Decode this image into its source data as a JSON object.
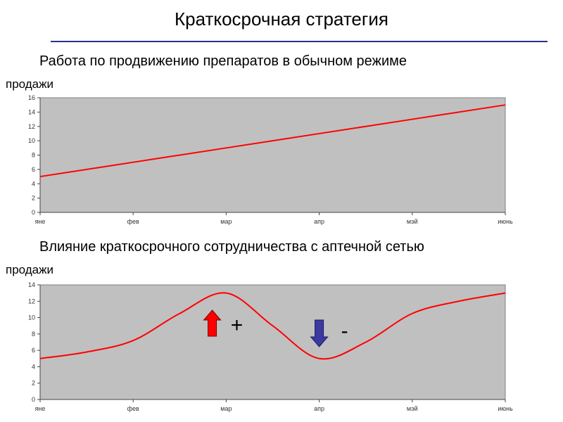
{
  "slide": {
    "title": "Краткосрочная стратегия",
    "subtitle1": "Работа по продвижению препаратов в обычном режиме",
    "subtitle2": "Влияние краткосрочного сотрудничества с аптечной сетью",
    "ylabel1": "продажи",
    "ylabel2": "продажи",
    "plus_sign": "+",
    "minus_sign": "-",
    "rule_color": "#2f2f8f"
  },
  "chart_data": [
    {
      "type": "line",
      "categories": [
        "яне",
        "фев",
        "мар",
        "апр",
        "мэй",
        "июнь"
      ],
      "series": [
        {
          "values": [
            5,
            7,
            9,
            11,
            13,
            15
          ]
        }
      ],
      "ylabel": "продажи",
      "ylim": [
        0,
        16
      ],
      "yticks": [
        0,
        2,
        4,
        6,
        8,
        10,
        12,
        14,
        16
      ],
      "grid": false,
      "plot_bg": "#c0c0c0",
      "line_color": "#ff0000"
    },
    {
      "type": "line",
      "categories": [
        "яне",
        "фев",
        "мар",
        "апр",
        "мэй",
        "июнь"
      ],
      "x": [
        0,
        0.5,
        1,
        1.5,
        2,
        2.5,
        3,
        3.5,
        4,
        4.5,
        5
      ],
      "series": [
        {
          "values": [
            5,
            5.8,
            7.2,
            10.5,
            13,
            9,
            5,
            7,
            10.5,
            12,
            13
          ]
        }
      ],
      "ylabel": "продажи",
      "ylim": [
        0,
        14
      ],
      "yticks": [
        0,
        2,
        4,
        6,
        8,
        10,
        12,
        14
      ],
      "grid": false,
      "plot_bg": "#c0c0c0",
      "line_color": "#ff0000",
      "annotations": [
        {
          "text": "+",
          "icon": "up-arrow-icon",
          "color": "#ff0000",
          "x": 1.85
        },
        {
          "text": "-",
          "icon": "down-arrow-icon",
          "color": "#3a3aa0",
          "x": 3
        }
      ]
    }
  ]
}
